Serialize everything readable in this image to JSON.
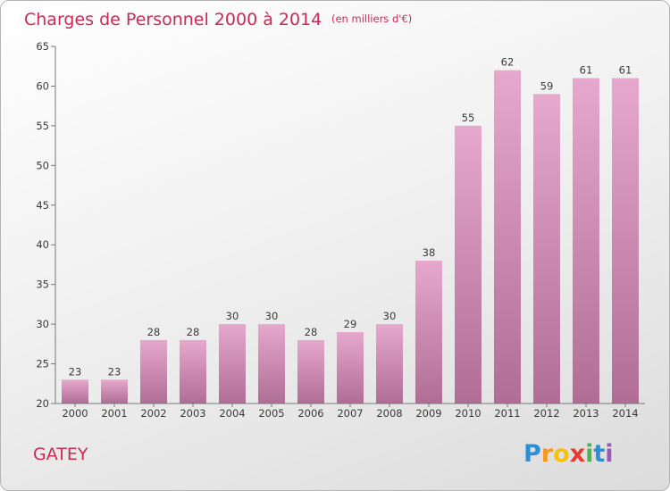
{
  "chart_data": {
    "type": "bar",
    "title": "Charges de Personnel 2000 à 2014",
    "subtitle": "(en milliers d'€)",
    "categories": [
      "2000",
      "2001",
      "2002",
      "2003",
      "2004",
      "2005",
      "2006",
      "2007",
      "2008",
      "2009",
      "2010",
      "2011",
      "2012",
      "2013",
      "2014"
    ],
    "values": [
      23,
      23,
      28,
      28,
      30,
      30,
      28,
      29,
      30,
      38,
      55,
      62,
      59,
      61,
      61
    ],
    "ylim": [
      20,
      65
    ],
    "yticks": [
      20,
      25,
      30,
      35,
      40,
      45,
      50,
      55,
      60,
      65
    ],
    "grid": false,
    "colors": {
      "bar_top": "#e6a8cc",
      "bar_bottom": "#b06e96",
      "title": "#cc2a52"
    }
  },
  "place_name": "GATEY",
  "logo": {
    "letters": [
      "P",
      "r",
      "o",
      "x",
      "i",
      "t",
      "i"
    ],
    "colors": [
      "#2b8fd8",
      "#f39a1e",
      "#f7c20d",
      "#e63a2e",
      "#4fb34b",
      "#2b8fd8",
      "#9b59b6"
    ]
  }
}
